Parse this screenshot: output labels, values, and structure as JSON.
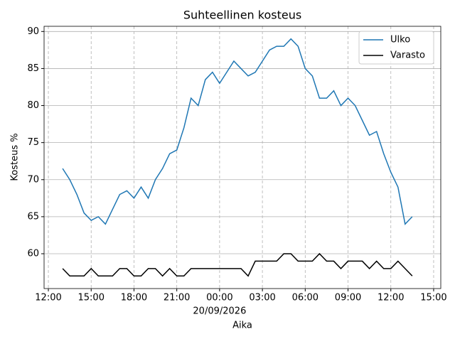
{
  "chart_data": {
    "type": "line",
    "title": "Suhteellinen kosteus",
    "xlabel": "Aika",
    "ylabel": "Kosteus %",
    "x_date_label": "20/09/2026",
    "x": [
      "2026-09-19T13:00",
      "2026-09-19T13:30",
      "2026-09-19T14:00",
      "2026-09-19T14:30",
      "2026-09-19T15:00",
      "2026-09-19T15:30",
      "2026-09-19T16:00",
      "2026-09-19T16:30",
      "2026-09-19T17:00",
      "2026-09-19T17:30",
      "2026-09-19T18:00",
      "2026-09-19T18:30",
      "2026-09-19T19:00",
      "2026-09-19T19:30",
      "2026-09-19T20:00",
      "2026-09-19T20:30",
      "2026-09-19T21:00",
      "2026-09-19T21:30",
      "2026-09-19T22:00",
      "2026-09-19T22:30",
      "2026-09-19T23:00",
      "2026-09-19T23:30",
      "2026-09-20T00:00",
      "2026-09-20T00:30",
      "2026-09-20T01:00",
      "2026-09-20T01:30",
      "2026-09-20T02:00",
      "2026-09-20T02:30",
      "2026-09-20T03:00",
      "2026-09-20T03:30",
      "2026-09-20T04:00",
      "2026-09-20T04:30",
      "2026-09-20T05:00",
      "2026-09-20T05:30",
      "2026-09-20T06:00",
      "2026-09-20T06:30",
      "2026-09-20T07:00",
      "2026-09-20T07:30",
      "2026-09-20T08:00",
      "2026-09-20T08:30",
      "2026-09-20T09:00",
      "2026-09-20T09:30",
      "2026-09-20T10:00",
      "2026-09-20T10:30",
      "2026-09-20T11:00",
      "2026-09-20T11:30",
      "2026-09-20T12:00",
      "2026-09-20T12:30",
      "2026-09-20T13:00",
      "2026-09-20T13:30"
    ],
    "series": [
      {
        "name": "Ulko",
        "color": "#1f77b4",
        "values": [
          71.5,
          70,
          68,
          65.5,
          64.5,
          65,
          64,
          66,
          68,
          68.5,
          67.5,
          69,
          67.5,
          70,
          71.5,
          73.5,
          74,
          77,
          81,
          80,
          83.5,
          84.5,
          83,
          84.5,
          86,
          85,
          84,
          84.5,
          86,
          87.5,
          88,
          88,
          89,
          88,
          85,
          84,
          81,
          81,
          82,
          80,
          81,
          80,
          78,
          76,
          76.5,
          73.5,
          71,
          69,
          64,
          65
        ]
      },
      {
        "name": "Varasto",
        "color": "#000000",
        "values": [
          58,
          57,
          57,
          57,
          58,
          57,
          57,
          57,
          58,
          58,
          57,
          57,
          58,
          58,
          57,
          58,
          57,
          57,
          58,
          58,
          58,
          58,
          58,
          58,
          58,
          58,
          57,
          59,
          59,
          59,
          59,
          60,
          60,
          59,
          59,
          59,
          60,
          59,
          59,
          58,
          59,
          59,
          59,
          58,
          59,
          58,
          58,
          59,
          58,
          57
        ]
      }
    ],
    "xlim": [
      "2026-09-19T11:42",
      "2026-09-20T15:30"
    ],
    "xticks": [
      {
        "value": "2026-09-19T12:00",
        "label": "12:00"
      },
      {
        "value": "2026-09-19T15:00",
        "label": "15:00"
      },
      {
        "value": "2026-09-19T18:00",
        "label": "18:00"
      },
      {
        "value": "2026-09-19T21:00",
        "label": "21:00"
      },
      {
        "value": "2026-09-20T00:00",
        "label": "00:00"
      },
      {
        "value": "2026-09-20T03:00",
        "label": "03:00"
      },
      {
        "value": "2026-09-20T06:00",
        "label": "06:00"
      },
      {
        "value": "2026-09-20T09:00",
        "label": "09:00"
      },
      {
        "value": "2026-09-20T12:00",
        "label": "12:00"
      },
      {
        "value": "2026-09-20T15:00",
        "label": "15:00"
      }
    ],
    "ylim": [
      55.3,
      90.7
    ],
    "yticks": [
      60,
      65,
      70,
      75,
      80,
      85,
      90
    ],
    "grid": true,
    "legend": "upper right"
  }
}
